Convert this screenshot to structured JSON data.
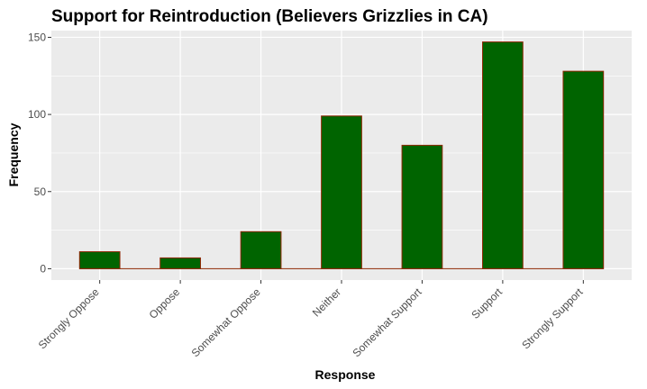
{
  "chart_data": {
    "type": "bar",
    "title": "Support for Reintroduction (Believers Grizzlies in CA)",
    "xlabel": "Response",
    "ylabel": "Frequency",
    "categories": [
      "Strongly Oppose",
      "Oppose",
      "Somewhat Oppose",
      "Neither",
      "Somewhat Support",
      "Support",
      "Strongly Support"
    ],
    "values": [
      11,
      7,
      24,
      99,
      80,
      147,
      128
    ],
    "ylim": [
      -7.35,
      154.35
    ],
    "yticks": [
      0,
      50,
      100,
      150
    ],
    "ytick_labels": [
      "0",
      "50",
      "100",
      "150"
    ],
    "grid": true,
    "legend": "none",
    "colors": {
      "bar_fill": "#006400",
      "bar_outline": "#8b2500",
      "panel_background": "#ebebeb",
      "grid": "#ffffff",
      "tick_text": "#4d4d4d",
      "tick_mark": "#333333"
    }
  }
}
